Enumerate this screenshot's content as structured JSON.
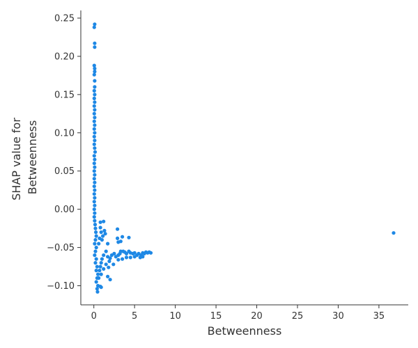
{
  "chart_data": {
    "type": "scatter",
    "title": "",
    "xlabel": "Betweenness",
    "ylabel": [
      "SHAP value for",
      "Betweenness"
    ],
    "xlim": [
      -1.6,
      38.6
    ],
    "ylim": [
      -0.125,
      0.26
    ],
    "xticks": [
      0,
      5,
      10,
      15,
      20,
      25,
      30,
      35
    ],
    "yticks": [
      -0.1,
      -0.05,
      0.0,
      0.05,
      0.1,
      0.15,
      0.2,
      0.25
    ],
    "ytick_labels": [
      "−0.10",
      "−0.05",
      "0.00",
      "0.05",
      "0.10",
      "0.15",
      "0.20",
      "0.25"
    ],
    "grid": false,
    "point_color": "#1e88e5",
    "points": [
      [
        0.1,
        0.242
      ],
      [
        0.05,
        0.238
      ],
      [
        0.1,
        0.217
      ],
      [
        0.1,
        0.212
      ],
      [
        0.05,
        0.188
      ],
      [
        0.1,
        0.184
      ],
      [
        0.1,
        0.18
      ],
      [
        0.05,
        0.176
      ],
      [
        0.1,
        0.168
      ],
      [
        0.1,
        0.16
      ],
      [
        0.05,
        0.155
      ],
      [
        0.1,
        0.15
      ],
      [
        0.05,
        0.145
      ],
      [
        0.1,
        0.14
      ],
      [
        0.05,
        0.135
      ],
      [
        0.1,
        0.13
      ],
      [
        0.05,
        0.125
      ],
      [
        0.1,
        0.12
      ],
      [
        0.05,
        0.115
      ],
      [
        0.1,
        0.11
      ],
      [
        0.05,
        0.105
      ],
      [
        0.1,
        0.1
      ],
      [
        0.05,
        0.095
      ],
      [
        0.1,
        0.09
      ],
      [
        0.05,
        0.085
      ],
      [
        0.1,
        0.08
      ],
      [
        0.15,
        0.075
      ],
      [
        0.05,
        0.07
      ],
      [
        0.1,
        0.065
      ],
      [
        0.05,
        0.06
      ],
      [
        0.1,
        0.055
      ],
      [
        0.05,
        0.05
      ],
      [
        0.1,
        0.045
      ],
      [
        0.05,
        0.04
      ],
      [
        0.1,
        0.035
      ],
      [
        0.05,
        0.03
      ],
      [
        0.1,
        0.025
      ],
      [
        0.05,
        0.02
      ],
      [
        0.1,
        0.015
      ],
      [
        0.05,
        0.01
      ],
      [
        0.1,
        0.005
      ],
      [
        0.05,
        0.0
      ],
      [
        0.1,
        -0.005
      ],
      [
        0.05,
        -0.01
      ],
      [
        0.1,
        -0.015
      ],
      [
        0.15,
        -0.02
      ],
      [
        0.2,
        -0.025
      ],
      [
        0.25,
        -0.03
      ],
      [
        0.3,
        -0.035
      ],
      [
        0.2,
        -0.04
      ],
      [
        0.1,
        -0.045
      ],
      [
        0.3,
        -0.05
      ],
      [
        0.2,
        -0.055
      ],
      [
        0.1,
        -0.06
      ],
      [
        0.3,
        -0.065
      ],
      [
        0.2,
        -0.07
      ],
      [
        0.4,
        -0.075
      ],
      [
        0.3,
        -0.08
      ],
      [
        0.5,
        -0.085
      ],
      [
        0.4,
        -0.09
      ],
      [
        0.3,
        -0.095
      ],
      [
        0.5,
        -0.1
      ],
      [
        0.4,
        -0.104
      ],
      [
        0.45,
        -0.108
      ],
      [
        0.8,
        -0.017
      ],
      [
        1.2,
        -0.016
      ],
      [
        1.3,
        -0.028
      ],
      [
        0.9,
        -0.03
      ],
      [
        1.0,
        -0.04
      ],
      [
        0.8,
        -0.024
      ],
      [
        1.1,
        -0.035
      ],
      [
        0.6,
        -0.045
      ],
      [
        0.7,
        -0.038
      ],
      [
        1.4,
        -0.032
      ],
      [
        1.7,
        -0.045
      ],
      [
        1.5,
        -0.055
      ],
      [
        1.2,
        -0.06
      ],
      [
        1.0,
        -0.065
      ],
      [
        0.9,
        -0.07
      ],
      [
        0.8,
        -0.075
      ],
      [
        0.7,
        -0.08
      ],
      [
        0.9,
        -0.085
      ],
      [
        1.2,
        -0.078
      ],
      [
        1.5,
        -0.072
      ],
      [
        0.6,
        -0.09
      ],
      [
        0.8,
        -0.101
      ],
      [
        0.9,
        -0.102
      ],
      [
        1.7,
        -0.062
      ],
      [
        1.9,
        -0.068
      ],
      [
        1.8,
        -0.076
      ],
      [
        2.0,
        -0.064
      ],
      [
        1.7,
        -0.088
      ],
      [
        2.0,
        -0.092
      ],
      [
        2.2,
        -0.06
      ],
      [
        2.5,
        -0.058
      ],
      [
        2.4,
        -0.072
      ],
      [
        2.7,
        -0.062
      ],
      [
        3.0,
        -0.06
      ],
      [
        3.2,
        -0.058
      ],
      [
        2.9,
        -0.026
      ],
      [
        3.5,
        -0.036
      ],
      [
        2.9,
        -0.038
      ],
      [
        3.0,
        -0.043
      ],
      [
        3.3,
        -0.042
      ],
      [
        4.3,
        -0.037
      ],
      [
        3.3,
        -0.055
      ],
      [
        3.6,
        -0.055
      ],
      [
        3.8,
        -0.056
      ],
      [
        4.0,
        -0.058
      ],
      [
        4.3,
        -0.055
      ],
      [
        4.5,
        -0.057
      ],
      [
        4.8,
        -0.058
      ],
      [
        5.0,
        -0.057
      ],
      [
        5.3,
        -0.06
      ],
      [
        5.5,
        -0.058
      ],
      [
        5.8,
        -0.06
      ],
      [
        6.0,
        -0.057
      ],
      [
        6.2,
        -0.058
      ],
      [
        6.4,
        -0.056
      ],
      [
        6.6,
        -0.057
      ],
      [
        6.8,
        -0.056
      ],
      [
        7.0,
        -0.057
      ],
      [
        4.0,
        -0.063
      ],
      [
        4.5,
        -0.063
      ],
      [
        5.0,
        -0.062
      ],
      [
        5.7,
        -0.063
      ],
      [
        6.0,
        -0.062
      ],
      [
        3.5,
        -0.065
      ],
      [
        3.0,
        -0.066
      ],
      [
        36.8,
        -0.031
      ]
    ]
  }
}
